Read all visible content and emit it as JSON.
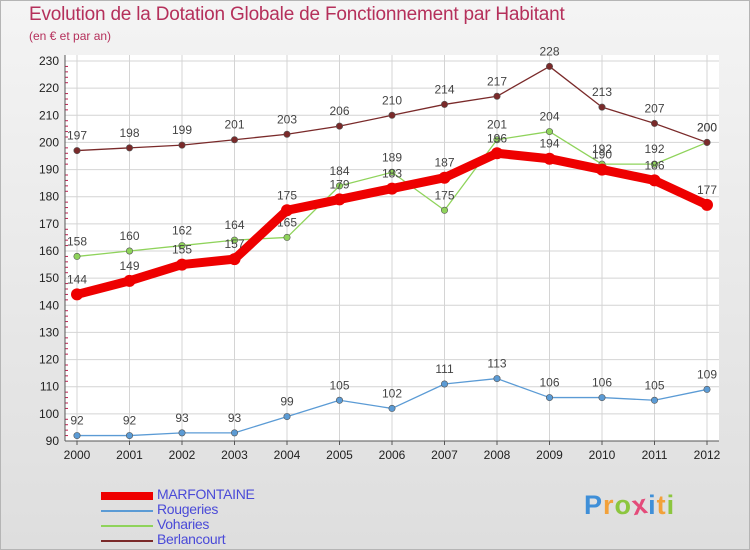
{
  "title": "Evolution de la Dotation Globale de Fonctionnement par Habitant",
  "subtitle": "(en € et par an)",
  "logo": {
    "letters": [
      "P",
      "r",
      "o",
      "x",
      "i",
      "t",
      "i"
    ],
    "colors": [
      "#3f8fd8",
      "#f2a13a",
      "#8cc63f",
      "#e44b7a",
      "#3f8fd8",
      "#f2a13a",
      "#8cc63f"
    ]
  },
  "chart_data": {
    "type": "line",
    "x": [
      "2000",
      "2001",
      "2002",
      "2003",
      "2004",
      "2005",
      "2006",
      "2007",
      "2008",
      "2009",
      "2010",
      "2011",
      "2012"
    ],
    "ylim": [
      90,
      230
    ],
    "yticks": [
      "90",
      "100",
      "110",
      "120",
      "130",
      "140",
      "150",
      "160",
      "170",
      "180",
      "190",
      "200",
      "210",
      "220",
      "230"
    ],
    "grid": true,
    "legend_position": "bottom-left",
    "series": [
      {
        "name": "Rougeries",
        "color": "#5b9bd5",
        "values": [
          92,
          92,
          93,
          93,
          99,
          105,
          102,
          111,
          113,
          106,
          106,
          105,
          109
        ]
      },
      {
        "name": "Voharies",
        "color": "#8fd35b",
        "values": [
          158,
          160,
          162,
          164,
          165,
          184,
          189,
          175,
          201,
          204,
          192,
          192,
          200
        ]
      },
      {
        "name": "Berlancourt",
        "color": "#7a2a2a",
        "values": [
          197,
          198,
          199,
          201,
          203,
          206,
          210,
          214,
          217,
          228,
          213,
          207,
          200
        ]
      },
      {
        "name": "MARFONTAINE",
        "color": "#ee0000",
        "values": [
          144,
          149,
          155,
          157,
          175,
          179,
          183,
          187,
          196,
          194,
          190,
          186,
          177
        ]
      }
    ],
    "legend": [
      {
        "name": "MARFONTAINE",
        "color": "#ee0000",
        "thick": true
      },
      {
        "name": "Rougeries",
        "color": "#5b9bd5"
      },
      {
        "name": "Voharies",
        "color": "#8fd35b"
      },
      {
        "name": "Berlancourt",
        "color": "#7a2a2a"
      }
    ]
  }
}
